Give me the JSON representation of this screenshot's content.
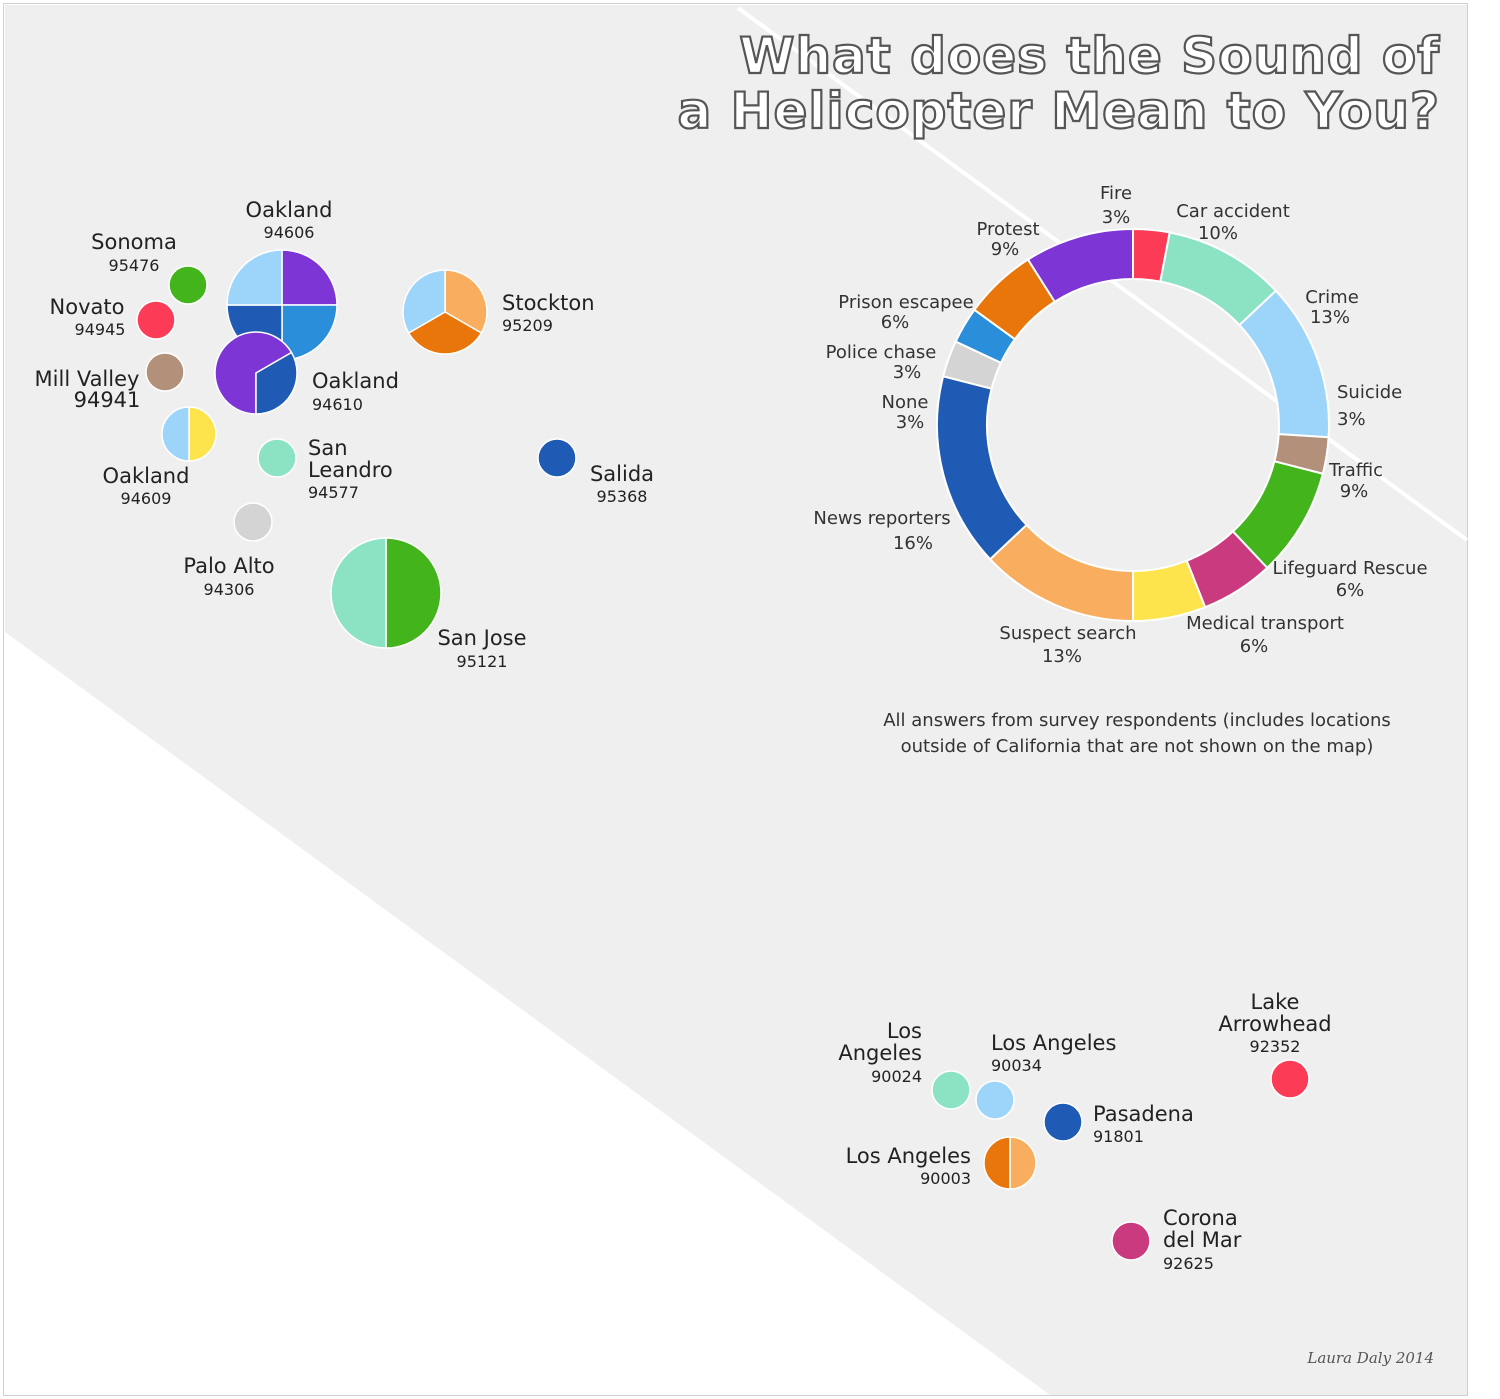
{
  "title": {
    "line1": "What does the Sound of",
    "line2": "a Helicopter Mean to You?"
  },
  "credit": "Laura Daly 2014",
  "caption": {
    "line1": "All answers from survey respondents (includes locations",
    "line2": "outside of California that are not shown on the map)"
  },
  "colors": {
    "Fire": "#fc3c56",
    "Car accident": "#8ce3c4",
    "Crime": "#9dd5fa",
    "Suicide": "#b3907a",
    "Traffic": "#43b41c",
    "Lifeguard Rescue": "#c93a7f",
    "Medical transport": "#fde44c",
    "Suspect search": "#f8ae5e",
    "News reporters": "#1f5bb4",
    "None": "#d4d4d4",
    "Police chase": "#2a8edb",
    "Prison escapee": "#e8760a",
    "Protest": "#7d35d6"
  },
  "chart_data": [
    {
      "type": "pie",
      "variant": "donut",
      "categories": [
        "Fire",
        "Car accident",
        "Crime",
        "Suicide",
        "Traffic",
        "Lifeguard Rescue",
        "Medical transport",
        "Suspect search",
        "News reporters",
        "None",
        "Police chase",
        "Prison escapee",
        "Protest"
      ],
      "values": [
        3,
        10,
        13,
        3,
        9,
        6,
        6,
        13,
        16,
        3,
        3,
        6,
        9
      ],
      "labels": [
        "3%",
        "10%",
        "13%",
        "3%",
        "9%",
        "6%",
        "6%",
        "13%",
        "16%",
        "3%",
        "3%",
        "6%",
        "9%"
      ]
    },
    {
      "type": "scatter",
      "variant": "map of locations with per-location pie markers",
      "locations": [
        {
          "city": "Oakland",
          "zip": "94606",
          "slices": [
            {
              "cat": "Protest",
              "v": 1
            },
            {
              "cat": "Police chase",
              "v": 1
            },
            {
              "cat": "News reporters",
              "v": 1
            },
            {
              "cat": "Crime",
              "v": 1
            }
          ]
        },
        {
          "city": "Sonoma",
          "zip": "95476",
          "slices": [
            {
              "cat": "Traffic",
              "v": 1
            }
          ]
        },
        {
          "city": "Novato",
          "zip": "94945",
          "slices": [
            {
              "cat": "Fire",
              "v": 1
            }
          ]
        },
        {
          "city": "Mill Valley",
          "zip": "94941",
          "slices": [
            {
              "cat": "Suicide",
              "v": 1
            }
          ]
        },
        {
          "city": "Oakland",
          "zip": "94610",
          "slices": [
            {
              "cat": "Protest",
              "v": 2
            },
            {
              "cat": "News reporters",
              "v": 1
            }
          ]
        },
        {
          "city": "Stockton",
          "zip": "95209",
          "slices": [
            {
              "cat": "Suspect search",
              "v": 1
            },
            {
              "cat": "Prison escapee",
              "v": 1
            },
            {
              "cat": "Crime",
              "v": 1
            }
          ]
        },
        {
          "city": "Oakland",
          "zip": "94609",
          "slices": [
            {
              "cat": "Medical transport",
              "v": 1
            },
            {
              "cat": "Crime",
              "v": 1
            }
          ]
        },
        {
          "city": "San Leandro",
          "zip": "94577",
          "slices": [
            {
              "cat": "Car accident",
              "v": 1
            }
          ]
        },
        {
          "city": "Salida",
          "zip": "95368",
          "slices": [
            {
              "cat": "News reporters",
              "v": 1
            }
          ]
        },
        {
          "city": "Palo Alto",
          "zip": "94306",
          "slices": [
            {
              "cat": "None",
              "v": 1
            }
          ]
        },
        {
          "city": "San Jose",
          "zip": "95121",
          "slices": [
            {
              "cat": "Traffic",
              "v": 1
            },
            {
              "cat": "Car accident",
              "v": 1
            }
          ]
        },
        {
          "city": "Los Angeles",
          "zip": "90024",
          "slices": [
            {
              "cat": "Car accident",
              "v": 1
            }
          ]
        },
        {
          "city": "Los Angeles",
          "zip": "90034",
          "slices": [
            {
              "cat": "Crime",
              "v": 1
            }
          ]
        },
        {
          "city": "Lake Arrowhead",
          "zip": "92352",
          "slices": [
            {
              "cat": "Fire",
              "v": 1
            }
          ]
        },
        {
          "city": "Pasadena",
          "zip": "91801",
          "slices": [
            {
              "cat": "News reporters",
              "v": 1
            }
          ]
        },
        {
          "city": "Los Angeles",
          "zip": "90003",
          "slices": [
            {
              "cat": "Suspect search",
              "v": 1
            },
            {
              "cat": "Prison escapee",
              "v": 1
            }
          ]
        },
        {
          "city": "Corona del Mar",
          "zip": "92625",
          "slices": [
            {
              "cat": "Lifeguard Rescue",
              "v": 1
            }
          ]
        }
      ]
    }
  ]
}
